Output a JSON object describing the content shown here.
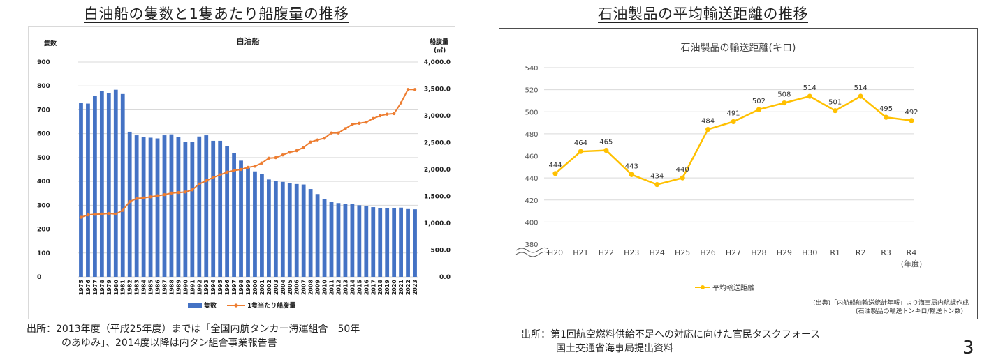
{
  "headings": {
    "left": "白油船の隻数と1隻あたり船腹量の推移",
    "right": "石油製品の平均輸送距離の推移"
  },
  "footnotes": {
    "left_line1": "出所：2013年度（平成25年度）までは「全国内航タンカー海運組合　50年",
    "left_line2": "のあゆみ」、2014度以降は内タン組合事業報告書",
    "right_line1": "出所：第1回航空燃料供給不足への対応に向けた官民タスクフォース",
    "right_line2": "国土交通省海事局提出資料"
  },
  "page_number": "3",
  "chart_data": [
    {
      "type": "bar",
      "title": "白油船",
      "ylabel": "隻数",
      "y2label_line1": "船腹量",
      "y2label_line2": "(㎥)",
      "ylim": [
        0,
        900
      ],
      "y_ticks": [
        "0",
        "100",
        "200",
        "300",
        "400",
        "500",
        "600",
        "700",
        "800",
        "900"
      ],
      "y2lim": [
        0,
        4000
      ],
      "y2_ticks": [
        "0.0",
        "500.0",
        "1,000.0",
        "1,500.0",
        "2,000.0",
        "2,500.0",
        "3,000.0",
        "3,500.0",
        "4,000.0"
      ],
      "categories": [
        "1975",
        "1976",
        "1977",
        "1978",
        "1979",
        "1980",
        "1981",
        "1982",
        "1983",
        "1984",
        "1985",
        "1986",
        "1987",
        "1988",
        "1989",
        "1990",
        "1991",
        "1992",
        "1993",
        "1994",
        "1995",
        "1996",
        "1997",
        "1998",
        "1999",
        "2000",
        "2001",
        "2002",
        "2003",
        "2004",
        "2005",
        "2006",
        "2007",
        "2008",
        "2009",
        "2010",
        "2011",
        "2012",
        "2013",
        "2014",
        "2015",
        "2016",
        "2017",
        "2018",
        "2019",
        "2020",
        "2021",
        "2022",
        "2023"
      ],
      "series": [
        {
          "name": "隻数",
          "kind": "bar",
          "axis": "left",
          "color": "#4472c4",
          "values": [
            728,
            726,
            757,
            780,
            769,
            784,
            766,
            608,
            593,
            585,
            583,
            580,
            593,
            597,
            587,
            564,
            566,
            588,
            593,
            570,
            570,
            547,
            519,
            487,
            456,
            442,
            430,
            408,
            401,
            398,
            394,
            389,
            387,
            368,
            347,
            326,
            314,
            309,
            306,
            305,
            300,
            296,
            292,
            289,
            288,
            287,
            290,
            284,
            283
          ]
        },
        {
          "name": "1隻当たり船腹量",
          "kind": "line",
          "axis": "right",
          "color": "#ed7d31",
          "values": [
            1110,
            1155,
            1165,
            1170,
            1180,
            1170,
            1240,
            1400,
            1460,
            1470,
            1490,
            1510,
            1530,
            1560,
            1570,
            1580,
            1620,
            1730,
            1790,
            1850,
            1900,
            1950,
            1980,
            2000,
            2040,
            2060,
            2120,
            2210,
            2220,
            2270,
            2320,
            2350,
            2410,
            2510,
            2550,
            2580,
            2680,
            2680,
            2760,
            2840,
            2860,
            2880,
            2950,
            3000,
            3030,
            3040,
            3240,
            3490,
            3490
          ]
        }
      ]
    },
    {
      "type": "line",
      "title": "石油製品の輸送距離(キロ)",
      "ylim": [
        380,
        540
      ],
      "y_ticks": [
        "380",
        "400",
        "420",
        "440",
        "460",
        "480",
        "500",
        "520",
        "540"
      ],
      "categories": [
        "H20",
        "H21",
        "H22",
        "H23",
        "H24",
        "H25",
        "H26",
        "H27",
        "H28",
        "H29",
        "H30",
        "R1",
        "R2",
        "R3",
        "R4"
      ],
      "xunit": "(年度)",
      "series": [
        {
          "name": "平均輸送距離",
          "color": "#ffc000",
          "values": [
            444,
            464,
            465,
            443,
            434,
            440,
            484,
            491,
            502,
            508,
            514,
            501,
            514,
            495,
            492
          ]
        }
      ],
      "source_line1": "(出典)「内航船舶輸送統計年報」より海事局内航課作成",
      "source_line2": "(石油製品の輸送トンキロ/輸送トン数)"
    }
  ]
}
